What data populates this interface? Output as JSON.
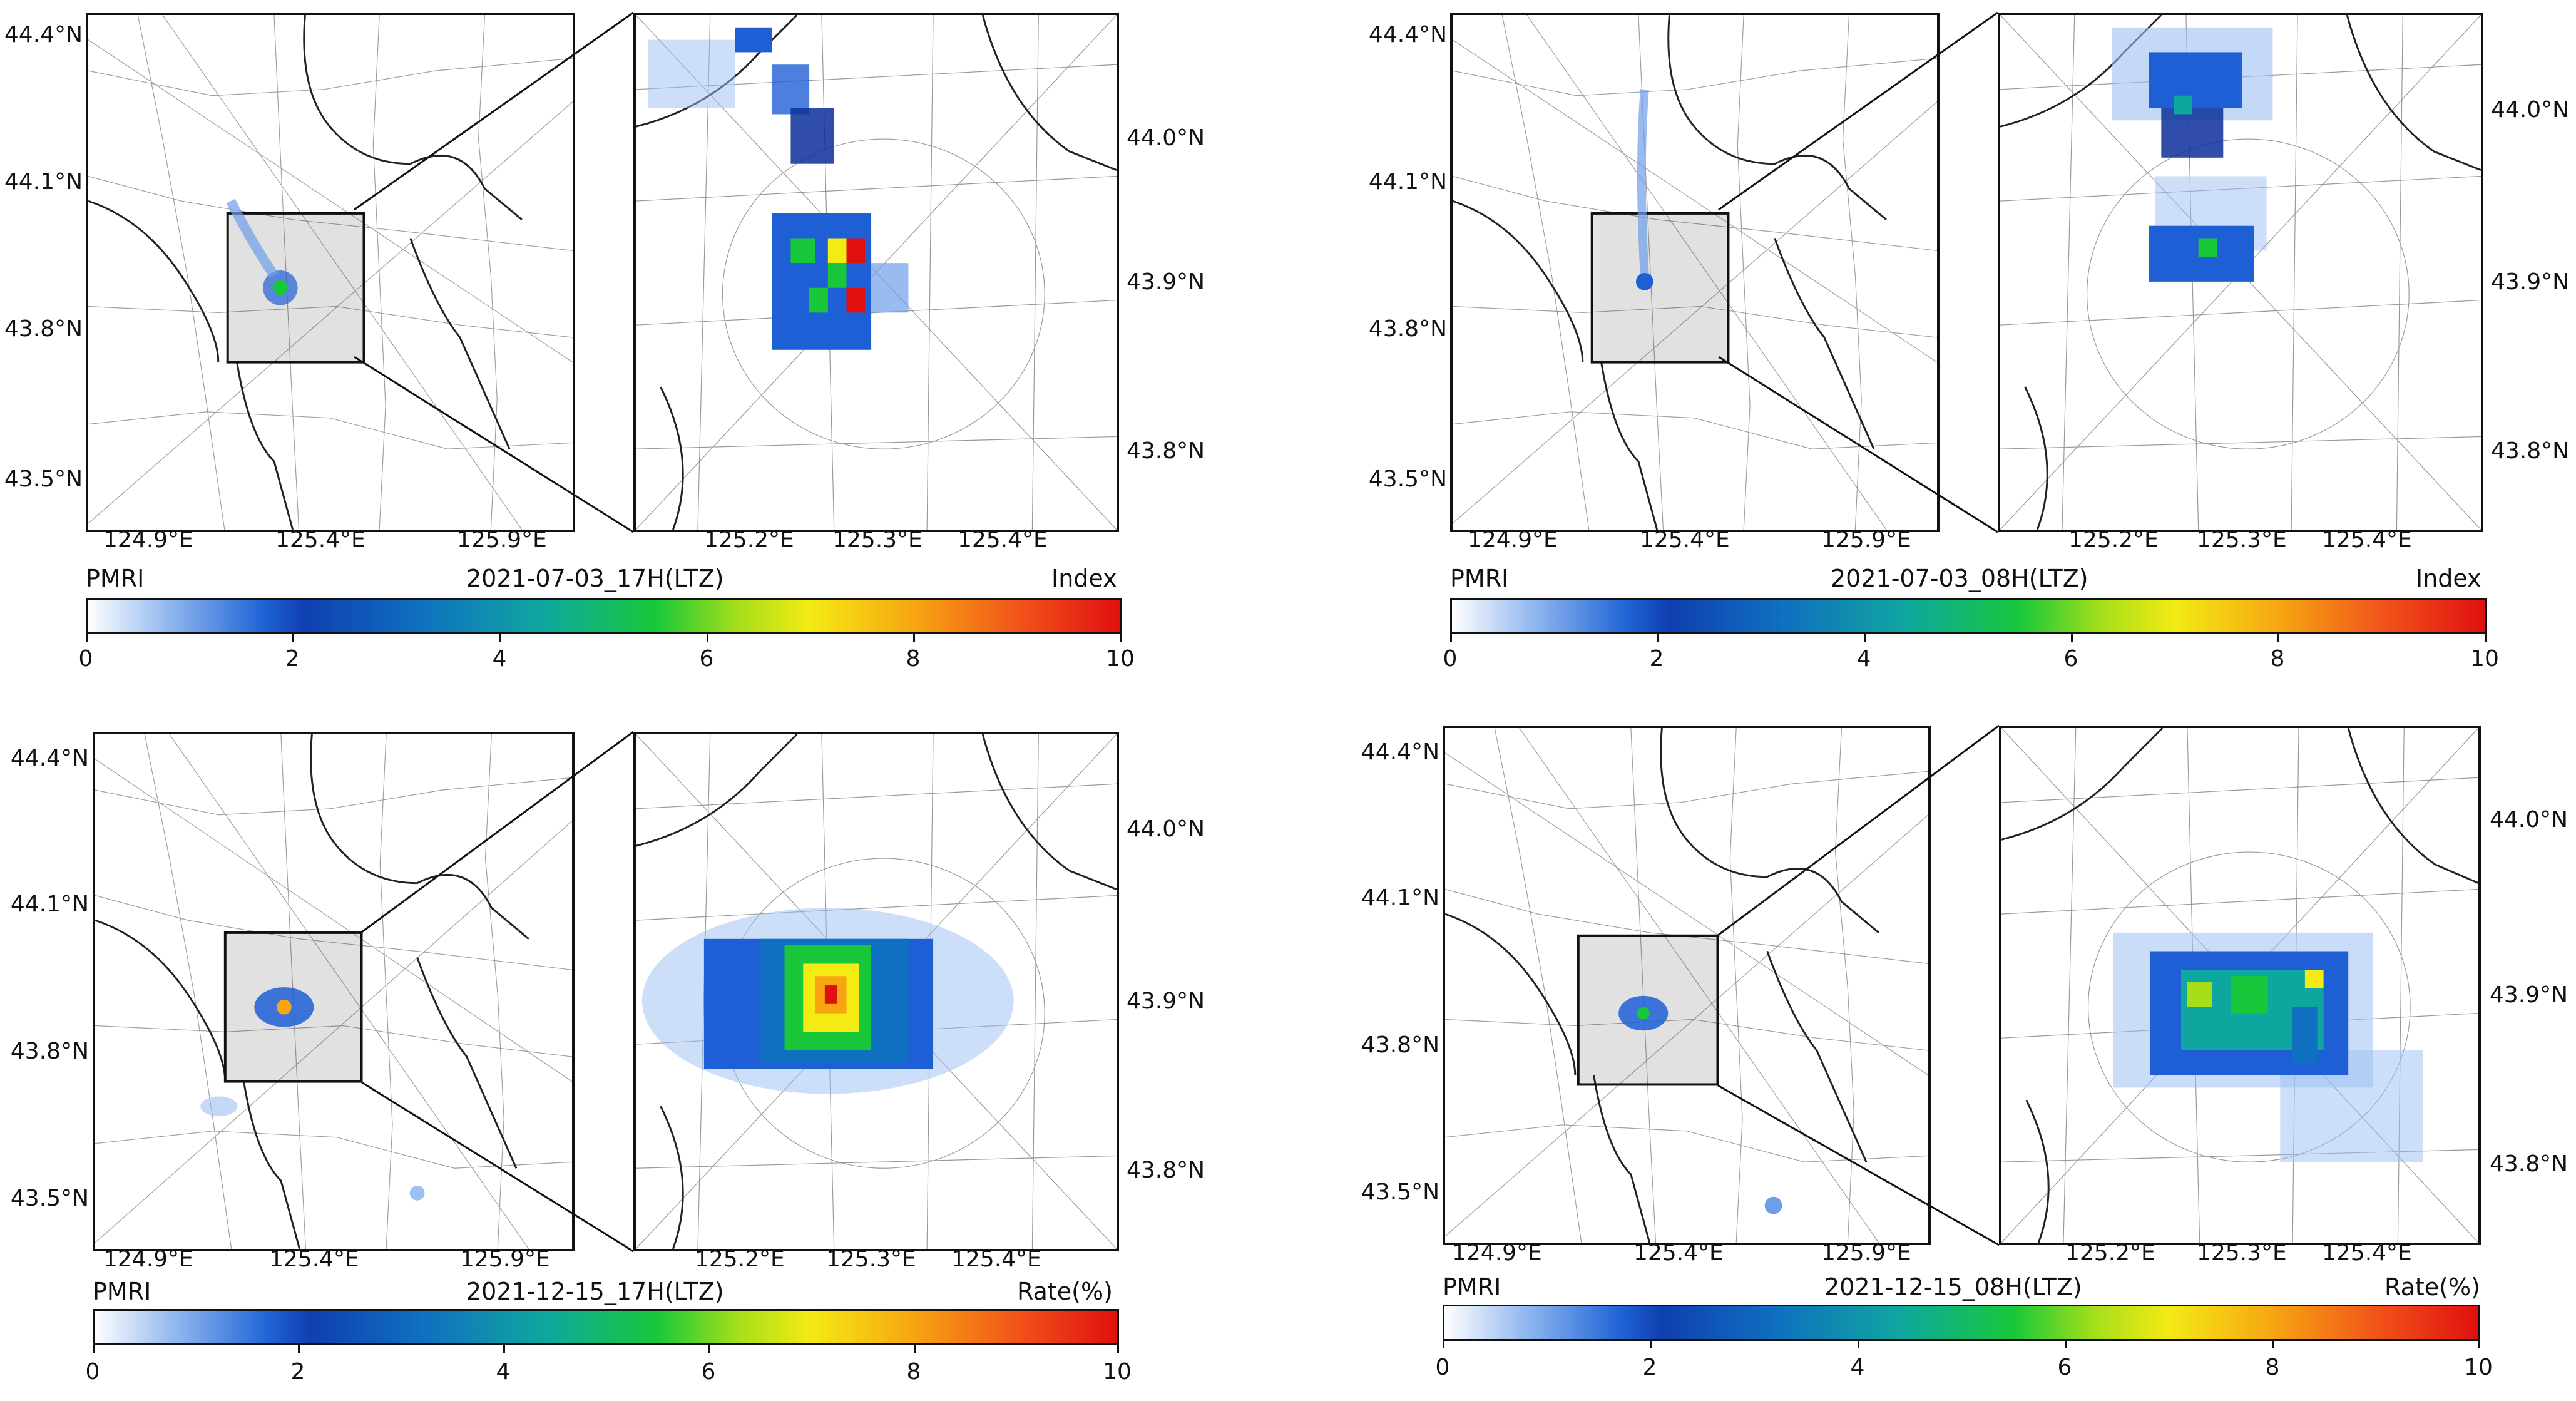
{
  "panels": [
    {
      "id": "tl",
      "timestamp": "2021-07-03_17H(LTZ)",
      "unit": "Index",
      "product": "PMRI",
      "overview": {
        "lat_labels": [
          "44.4°N",
          "44.1°N",
          "43.8°N",
          "43.5°N"
        ],
        "lon_labels": [
          "124.9°E",
          "125.4°E",
          "125.9°E"
        ]
      },
      "zoom": {
        "lat_labels": [
          "44.0°N",
          "43.9°N",
          "43.8°N"
        ],
        "lon_labels": [
          "125.2°E",
          "125.3°E",
          "125.4°E"
        ]
      },
      "colorbar": {
        "min": 0,
        "max": 10,
        "ticks": [
          "0",
          "2",
          "4",
          "6",
          "8",
          "10"
        ]
      }
    },
    {
      "id": "tr",
      "timestamp": "2021-07-03_08H(LTZ)",
      "unit": "Index",
      "product": "PMRI",
      "overview": {
        "lat_labels": [
          "44.4°N",
          "44.1°N",
          "43.8°N",
          "43.5°N"
        ],
        "lon_labels": [
          "124.9°E",
          "125.4°E",
          "125.9°E"
        ]
      },
      "zoom": {
        "lat_labels": [
          "44.0°N",
          "43.9°N",
          "43.8°N"
        ],
        "lon_labels": [
          "125.2°E",
          "125.3°E",
          "125.4°E"
        ]
      },
      "colorbar": {
        "min": 0,
        "max": 10,
        "ticks": [
          "0",
          "2",
          "4",
          "6",
          "8",
          "10"
        ]
      }
    },
    {
      "id": "bl",
      "timestamp": "2021-12-15_17H(LTZ)",
      "unit": "Rate(%)",
      "product": "PMRI",
      "overview": {
        "lat_labels": [
          "44.4°N",
          "44.1°N",
          "43.8°N",
          "43.5°N"
        ],
        "lon_labels": [
          "124.9°E",
          "125.4°E",
          "125.9°E"
        ]
      },
      "zoom": {
        "lat_labels": [
          "44.0°N",
          "43.9°N",
          "43.8°N"
        ],
        "lon_labels": [
          "125.2°E",
          "125.3°E",
          "125.4°E"
        ]
      },
      "colorbar": {
        "min": 0,
        "max": 10,
        "ticks": [
          "0",
          "2",
          "4",
          "6",
          "8",
          "10"
        ]
      }
    },
    {
      "id": "br",
      "timestamp": "2021-12-15_08H(LTZ)",
      "unit": "Rate(%)",
      "product": "PMRI",
      "overview": {
        "lat_labels": [
          "44.4°N",
          "44.1°N",
          "43.8°N",
          "43.5°N"
        ],
        "lon_labels": [
          "124.9°E",
          "125.4°E",
          "125.9°E"
        ]
      },
      "zoom": {
        "lat_labels": [
          "44.0°N",
          "43.9°N",
          "43.8°N"
        ],
        "lon_labels": [
          "125.2°E",
          "125.3°E",
          "125.4°E"
        ]
      },
      "colorbar": {
        "min": 0,
        "max": 10,
        "ticks": [
          "0",
          "2",
          "4",
          "6",
          "8",
          "10"
        ]
      }
    }
  ],
  "colors": {
    "light_blue": "#9cc0f2",
    "blue": "#1f5fd6",
    "dark_blue": "#0c2f9a",
    "teal": "#10a6a0",
    "green": "#18c83a",
    "yellow_green": "#a6df1a",
    "yellow": "#f4ea14",
    "orange": "#f7a612",
    "red": "#e01010"
  }
}
